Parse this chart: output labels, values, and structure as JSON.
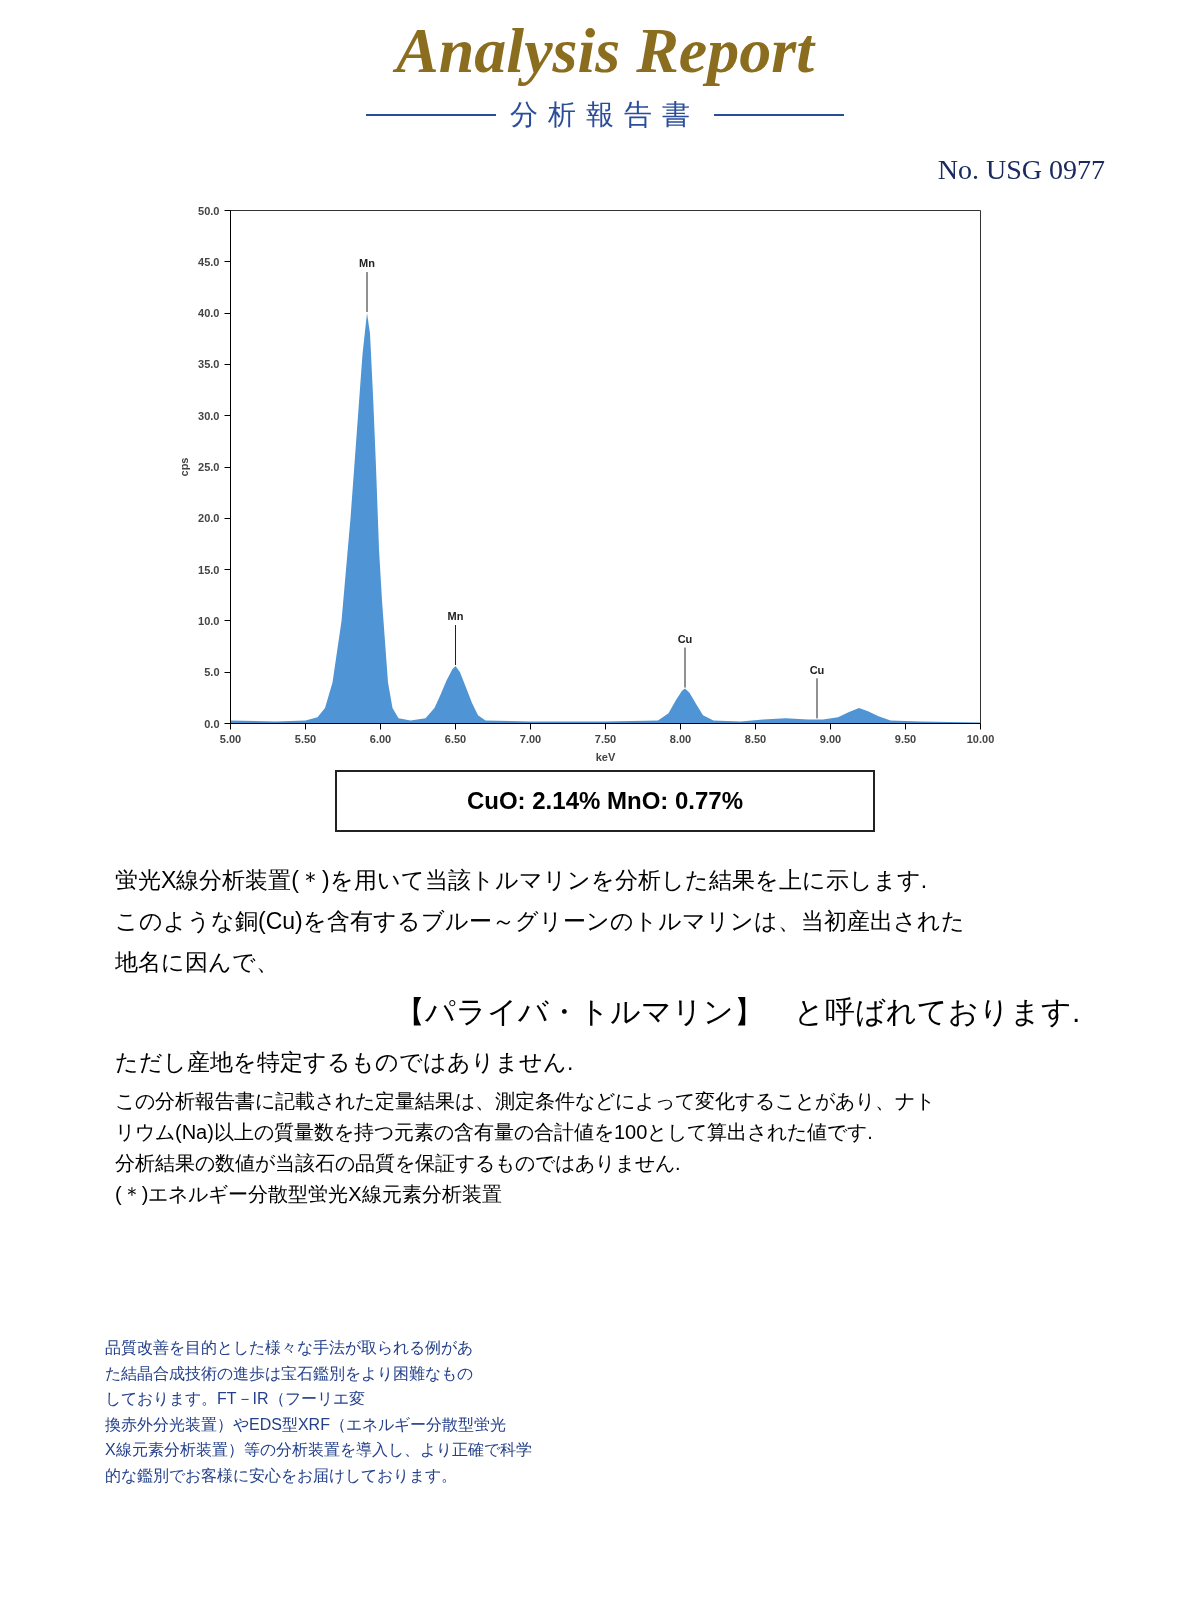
{
  "chart_data": {
    "type": "area",
    "title": "Analysis Report",
    "subtitle": "分析報告書",
    "xlabel": "keV",
    "ylabel": "cps",
    "x": [
      5.0,
      5.3,
      5.5,
      5.58,
      5.63,
      5.68,
      5.71,
      5.74,
      5.77,
      5.8,
      5.83,
      5.86,
      5.88,
      5.91,
      5.93,
      5.95,
      5.97,
      5.99,
      6.01,
      6.03,
      6.05,
      6.08,
      6.12,
      6.2,
      6.3,
      6.36,
      6.4,
      6.44,
      6.48,
      6.5,
      6.53,
      6.57,
      6.61,
      6.65,
      6.7,
      7.0,
      7.5,
      7.85,
      7.92,
      7.97,
      8.01,
      8.03,
      8.06,
      8.1,
      8.15,
      8.22,
      8.4,
      8.55,
      8.7,
      8.85,
      8.95,
      9.05,
      9.12,
      9.19,
      9.25,
      9.32,
      9.4,
      9.6,
      10.0
    ],
    "series": [
      {
        "color": "#4f94d4",
        "values": [
          0.3,
          0.2,
          0.3,
          0.6,
          1.5,
          4,
          7,
          10,
          15,
          20,
          26,
          32,
          36,
          40.0,
          38,
          32,
          25,
          17,
          12,
          8,
          4,
          1.5,
          0.5,
          0.3,
          0.5,
          1.5,
          2.8,
          4.2,
          5.3,
          5.6,
          5.0,
          3.5,
          2.0,
          0.8,
          0.3,
          0.2,
          0.2,
          0.3,
          1.0,
          2.3,
          3.2,
          3.4,
          3.0,
          2.0,
          0.8,
          0.3,
          0.2,
          0.4,
          0.5,
          0.4,
          0.4,
          0.6,
          1.1,
          1.5,
          1.2,
          0.7,
          0.3,
          0.2,
          0.1
        ]
      }
    ],
    "xlim": [
      5.0,
      10.0
    ],
    "xticks": [
      {
        "value": 5.0,
        "label": "5.00"
      },
      {
        "value": 5.5,
        "label": "5.50"
      },
      {
        "value": 6.0,
        "label": "6.00"
      },
      {
        "value": 6.5,
        "label": "6.50"
      },
      {
        "value": 7.0,
        "label": "7.00"
      },
      {
        "value": 7.5,
        "label": "7.50"
      },
      {
        "value": 8.0,
        "label": "8.00"
      },
      {
        "value": 8.5,
        "label": "8.50"
      },
      {
        "value": 9.0,
        "label": "9.00"
      },
      {
        "value": 9.5,
        "label": "9.50"
      },
      {
        "value": 10.0,
        "label": "10.00"
      }
    ],
    "ylim": [
      0,
      50
    ],
    "yticks": [
      {
        "value": 0,
        "label": "0.0"
      },
      {
        "value": 5,
        "label": "5.0"
      },
      {
        "value": 10,
        "label": "10.0"
      },
      {
        "value": 15,
        "label": "15.0"
      },
      {
        "value": 20,
        "label": "20.0"
      },
      {
        "value": 25,
        "label": "25.0"
      },
      {
        "value": 30,
        "label": "30.0"
      },
      {
        "value": 35,
        "label": "35.0"
      },
      {
        "value": 40,
        "label": "40.0"
      },
      {
        "value": 45,
        "label": "45.0"
      },
      {
        "value": 50,
        "label": "50.0"
      }
    ],
    "grid": false,
    "annotations": [
      {
        "text": "Mn",
        "x": 5.91,
        "y": 40.0
      },
      {
        "text": "Mn",
        "x": 6.5,
        "y": 5.6
      },
      {
        "text": "Cu",
        "x": 8.03,
        "y": 3.4
      },
      {
        "text": "Cu",
        "x": 8.91,
        "y": 0.4
      },
      "No.  USG 0977",
      "CuO: 2.14%  MnO: 0.77%",
      "蛍光X線分析装置(＊)を用いて当該トルマリンを分析した結果を上に示します.",
      "このような銅(Cu)を含有するブルー～グリーンのトルマリンは、当初産出された",
      "地名に因んで、",
      "【パライバ・トルマリン】　と呼ばれております.",
      "ただし産地を特定するものではありません.",
      "この分析報告書に記載された定量結果は、測定条件などによって変化することがあり、ナト",
      "リウム(Na)以上の質量数を持つ元素の含有量の合計値を100として算出された値です.",
      "分析結果の数値が当該石の品質を保証するものではありません.",
      "(＊)エネルギー分散型蛍光X線元素分析装置",
      "品質改善を目的とした様々な手法が取られる例があ",
      "た結晶合成技術の進歩は宝石鑑別をより困難なもの",
      "しております。FT－IR（フーリエ変",
      "換赤外分光装置）やEDS型XRF（エネルギー分散型蛍光",
      "X線元素分析装置）等の分析装置を導入し、より正確で科学",
      "的な鑑別でお客様に安心をお届けしております。"
    ]
  }
}
